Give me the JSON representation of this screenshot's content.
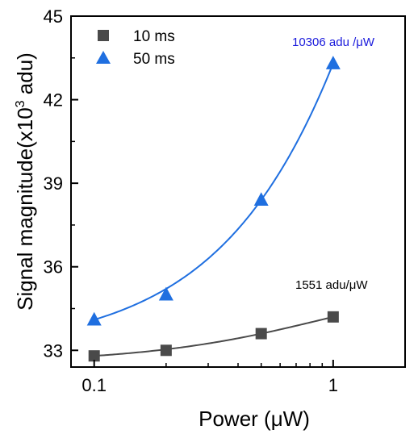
{
  "chart_data": {
    "type": "scatter",
    "xlabel": "Power (μW)",
    "ylabel": "Signal magnitude(x10",
    "ylabel_sup": "3",
    "ylabel_tail": " adu)",
    "x_scale": "log",
    "xlim": [
      0.08,
      2.0
    ],
    "ylim": [
      32.4,
      45
    ],
    "x_ticks": [
      0.1,
      1
    ],
    "x_tick_labels": [
      "0.1",
      "1"
    ],
    "y_ticks": [
      33,
      36,
      39,
      42,
      45
    ],
    "y_tick_labels": [
      "33",
      "36",
      "39",
      "42",
      "45"
    ],
    "legend_position": "top-left",
    "grid": false,
    "series": [
      {
        "name": "10 ms",
        "marker": "square",
        "color": "#4a4a4a",
        "x": [
          0.1,
          0.2,
          0.5,
          1
        ],
        "y": [
          32.8,
          33.0,
          33.6,
          34.2
        ]
      },
      {
        "name": "50 ms",
        "marker": "triangle",
        "color": "#1f6fe0",
        "x": [
          0.1,
          0.2,
          0.5,
          1
        ],
        "y": [
          34.1,
          35.0,
          38.4,
          43.3
        ]
      }
    ],
    "annotations": [
      {
        "text": "10306 adu /μW",
        "color": "#1a1adc"
      },
      {
        "text": "1551 adu/μW",
        "color": "#000000"
      }
    ]
  }
}
